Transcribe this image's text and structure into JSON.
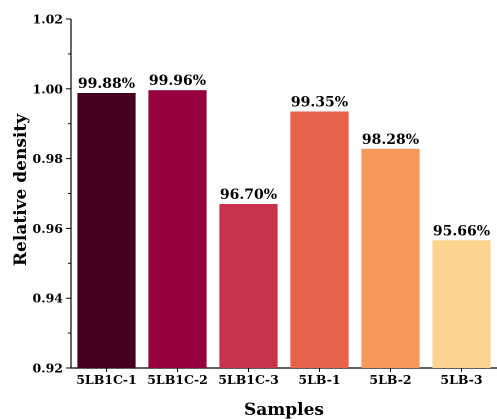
{
  "chart_data": {
    "type": "bar",
    "title": "",
    "xlabel": "Samples",
    "ylabel": "Relative density",
    "ylim": [
      0.92,
      1.02
    ],
    "yticks": [
      "0.92",
      "0.94",
      "0.96",
      "0.98",
      "1.00",
      "1.02"
    ],
    "categories": [
      "5LB1C-1",
      "5LB1C-2",
      "5LB1C-3",
      "5LB-1",
      "5LB-2",
      "5LB-3"
    ],
    "values": [
      0.9988,
      0.9996,
      0.967,
      0.9935,
      0.9828,
      0.9566
    ],
    "data_labels": [
      "99.88%",
      "99.96%",
      "96.70%",
      "99.35%",
      "98.28%",
      "95.66%"
    ],
    "bar_colors": [
      "#45001f",
      "#96003f",
      "#c8324c",
      "#e8614b",
      "#f7975a",
      "#fcd48f"
    ],
    "grid": false,
    "legend": "none"
  }
}
